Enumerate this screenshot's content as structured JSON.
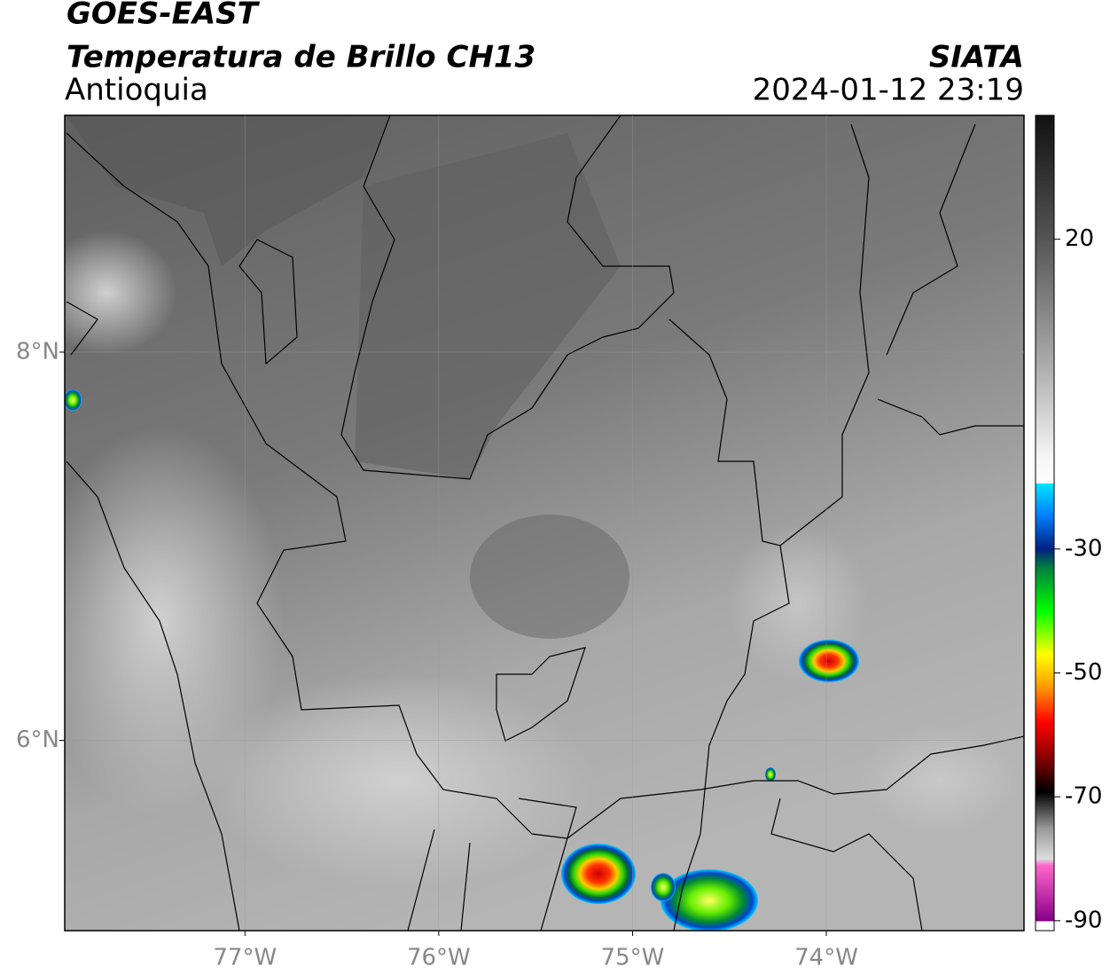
{
  "header": {
    "title": "GOES-EAST",
    "subtitle": "Temperatura de Brillo CH13",
    "region": "Antioquia",
    "source": "SIATA",
    "datetime": "2024-01-12 23:19"
  },
  "map": {
    "xlim": [
      -77.93,
      -72.98
    ],
    "ylim": [
      5.02,
      9.22
    ],
    "xticks": [
      {
        "value": -77,
        "label": "77°W"
      },
      {
        "value": -76,
        "label": "76°W"
      },
      {
        "value": -75,
        "label": "75°W"
      },
      {
        "value": -74,
        "label": "74°W"
      }
    ],
    "yticks": [
      {
        "value": 6,
        "label": "6°N"
      },
      {
        "value": 8,
        "label": "8°N"
      }
    ],
    "grid": true
  },
  "colorbar": {
    "lim": [
      -91.6,
      40
    ],
    "ticks": [
      -90,
      -70,
      -50,
      -30,
      20
    ]
  }
}
